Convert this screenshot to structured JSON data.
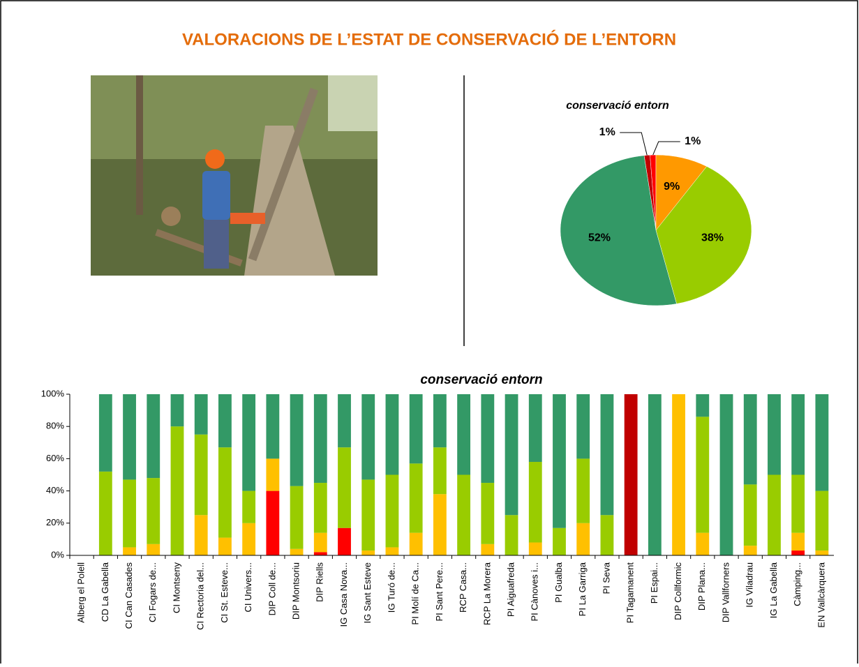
{
  "header": {
    "title": "VALORACIONS DE L’ESTAT DE CONSERVACIÓ DE L’ENTORN"
  },
  "chart_data": [
    {
      "type": "pie",
      "title": "conservació entorn",
      "values": [
        1,
        1,
        9,
        38,
        52
      ],
      "value_labels": [
        "1%",
        "1%",
        "9%",
        "38%",
        "52%"
      ],
      "colors": [
        "#c00000",
        "#ff0000",
        "#ff9900",
        "#99cc00",
        "#339966"
      ]
    },
    {
      "type": "stacked-bar",
      "title": "conservació entorn",
      "categories": [
        "Alberg el Polell",
        "CD La Gabella",
        "CI Can Casades",
        "CI Fogars de...",
        "CI Montseny",
        "CI Rectoria del...",
        "CI St. Esteve...",
        "CI Univers...",
        "DIP Coll de...",
        "DIP Montsoriu",
        "DIP Riells",
        "IG Casa Nova...",
        "IG Sant Esteve",
        "IG Turó de...",
        "PI Molí de Ca...",
        "PI Sant Pere...",
        "RCP Casa...",
        "RCP La Morera",
        "PI Aiguafreda",
        "PI Cànoves i...",
        "PI Gualba",
        "PI La Garriga",
        "PI Seva",
        "PI Tagamanent",
        "PI Espai...",
        "DIP Collformic",
        "DIP Plana...",
        "DIP Vallforners",
        "IG Viladrau",
        "IG La Gabella",
        "Càmping...",
        "EN Vallcàrquera"
      ],
      "series": [
        {
          "color": "#c00000",
          "values": [
            0,
            0,
            0,
            0,
            0,
            0,
            0,
            0,
            0,
            0,
            0,
            0,
            0,
            0,
            0,
            0,
            0,
            0,
            0,
            0,
            0,
            0,
            0,
            100,
            0,
            0,
            0,
            0,
            0,
            0,
            0,
            0
          ]
        },
        {
          "color": "#ff0000",
          "values": [
            0,
            0,
            0,
            0,
            0,
            0,
            0,
            0,
            40,
            0,
            2,
            17,
            0,
            0,
            0,
            0,
            0,
            0,
            0,
            0,
            0,
            0,
            0,
            0,
            0,
            0,
            0,
            0,
            0,
            0,
            3,
            0
          ]
        },
        {
          "color": "#ffc000",
          "values": [
            0,
            0,
            5,
            7,
            0,
            25,
            11,
            20,
            20,
            4,
            12,
            0,
            3,
            5,
            14,
            38,
            0,
            7,
            0,
            8,
            0,
            20,
            0,
            0,
            0,
            100,
            14,
            0,
            6,
            0,
            11,
            3
          ]
        },
        {
          "color": "#99cc00",
          "values": [
            0,
            52,
            42,
            41,
            80,
            50,
            56,
            20,
            0,
            39,
            31,
            50,
            44,
            45,
            43,
            29,
            50,
            38,
            25,
            50,
            17,
            40,
            25,
            0,
            0,
            0,
            72,
            0,
            38,
            50,
            36,
            37
          ]
        },
        {
          "color": "#339966",
          "values": [
            0,
            48,
            53,
            52,
            20,
            25,
            33,
            60,
            40,
            57,
            55,
            33,
            53,
            50,
            43,
            33,
            50,
            55,
            75,
            42,
            83,
            40,
            75,
            0,
            100,
            0,
            14,
            100,
            56,
            50,
            50,
            60
          ]
        }
      ],
      "ylim": [
        0,
        100
      ],
      "yticks": [
        {
          "value": 0,
          "label": "0%"
        },
        {
          "value": 20,
          "label": "20%"
        },
        {
          "value": 40,
          "label": "40%"
        },
        {
          "value": 60,
          "label": "60%"
        },
        {
          "value": 80,
          "label": "80%"
        },
        {
          "value": 100,
          "label": "100%"
        }
      ]
    }
  ]
}
